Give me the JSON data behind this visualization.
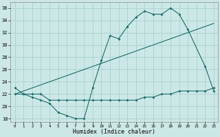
{
  "xlabel": "Humidex (Indice chaleur)",
  "bg_color": "#cce8e6",
  "grid_color": "#aad4d2",
  "line_color": "#1a6b6a",
  "xlim": [
    -0.5,
    23.5
  ],
  "ylim": [
    17.5,
    37.0
  ],
  "xticks": [
    0,
    1,
    2,
    3,
    4,
    5,
    6,
    7,
    8,
    9,
    10,
    11,
    12,
    13,
    14,
    15,
    16,
    17,
    18,
    19,
    20,
    21,
    22,
    23
  ],
  "yticks": [
    18,
    20,
    22,
    24,
    26,
    28,
    30,
    32,
    34,
    36
  ],
  "series1_x": [
    0,
    1,
    2,
    3,
    4,
    5,
    6,
    7,
    8,
    9,
    10,
    11,
    12,
    13,
    14,
    15,
    16,
    17,
    18,
    19,
    20,
    22,
    23
  ],
  "series1_y": [
    23,
    22,
    21.5,
    21,
    20.5,
    19,
    18.5,
    18,
    18,
    23,
    27.5,
    31.5,
    31,
    33,
    34.5,
    35.5,
    35,
    35,
    36,
    35,
    32.5,
    26.5,
    22.5
  ],
  "series2_x": [
    0,
    1,
    2,
    3,
    4,
    5,
    6,
    7,
    8,
    9,
    10,
    11,
    12,
    13,
    14,
    15,
    16,
    17,
    18,
    19,
    20,
    21,
    22,
    23
  ],
  "series2_y": [
    22,
    22,
    22,
    22,
    21,
    21,
    21,
    21,
    21,
    21,
    21,
    21,
    21,
    21,
    21,
    21.5,
    21.5,
    22,
    22,
    22.5,
    22.5,
    22.5,
    22.5,
    23
  ],
  "series3_x": [
    0,
    1,
    2,
    3,
    4,
    5,
    6,
    7,
    8,
    9,
    10,
    11,
    12,
    13,
    14,
    15,
    16,
    17,
    18,
    19,
    20,
    21,
    22,
    23
  ],
  "series3_y": [
    22,
    22.5,
    23,
    23.5,
    24,
    24.5,
    25,
    25.5,
    26,
    26.5,
    27,
    27.5,
    28,
    28.5,
    29,
    29.5,
    30,
    30.5,
    31,
    31.5,
    32,
    32.5,
    33,
    33.5
  ]
}
